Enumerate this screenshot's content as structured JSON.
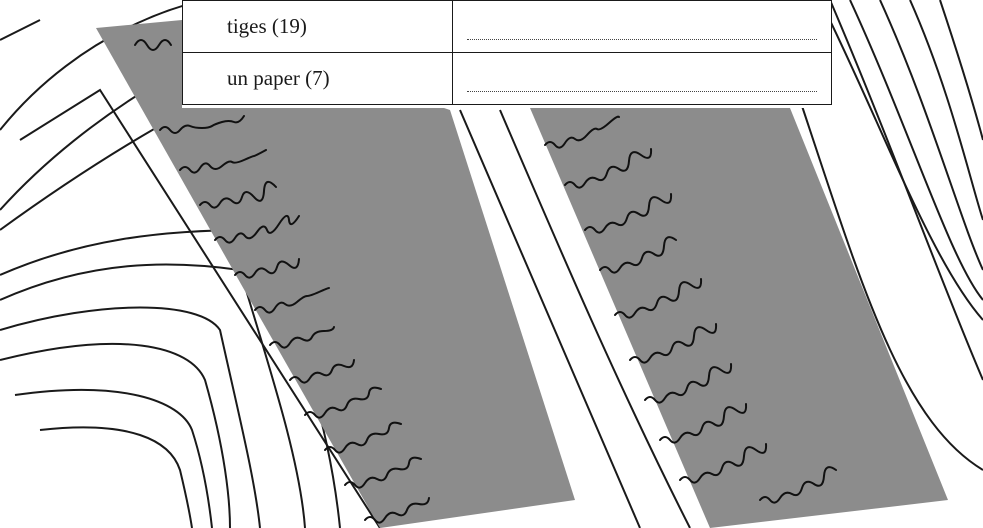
{
  "exercise": {
    "rows": [
      {
        "word": "tiges (19)",
        "answer": ""
      },
      {
        "word": "un paper (7)",
        "answer": ""
      }
    ]
  },
  "illustration": {
    "subject": "open-manuscript-book",
    "colors": {
      "background": "#ffffff",
      "page_shade": "#8c8c8c",
      "ink": "#111111",
      "line": "#1a1a1a"
    }
  }
}
